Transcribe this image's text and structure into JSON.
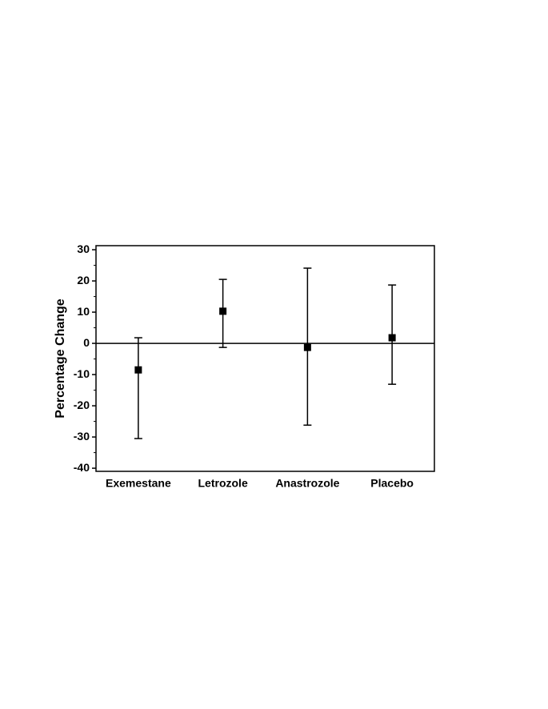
{
  "chart_data": {
    "type": "errorbar",
    "y_label": "Percentage Change",
    "categories": [
      "Exemestane",
      "Letrozole",
      "Anastrozole",
      "Placebo"
    ],
    "series": [
      {
        "color": "#000000",
        "values": [
          -8.5,
          10.3,
          -1.3,
          1.8
        ],
        "upper": [
          1.8,
          20.5,
          24.1,
          18.7
        ],
        "lower": [
          -30.5,
          -1.3,
          -26.2,
          -13.1
        ]
      }
    ],
    "ylim": [
      -41,
      31.3
    ],
    "yticks": [
      -40,
      -30,
      -20,
      -10,
      0,
      10,
      20,
      30
    ],
    "minor_yticks": [
      -35,
      -25,
      -15,
      -5,
      5,
      15,
      25
    ],
    "zero_line": true
  }
}
